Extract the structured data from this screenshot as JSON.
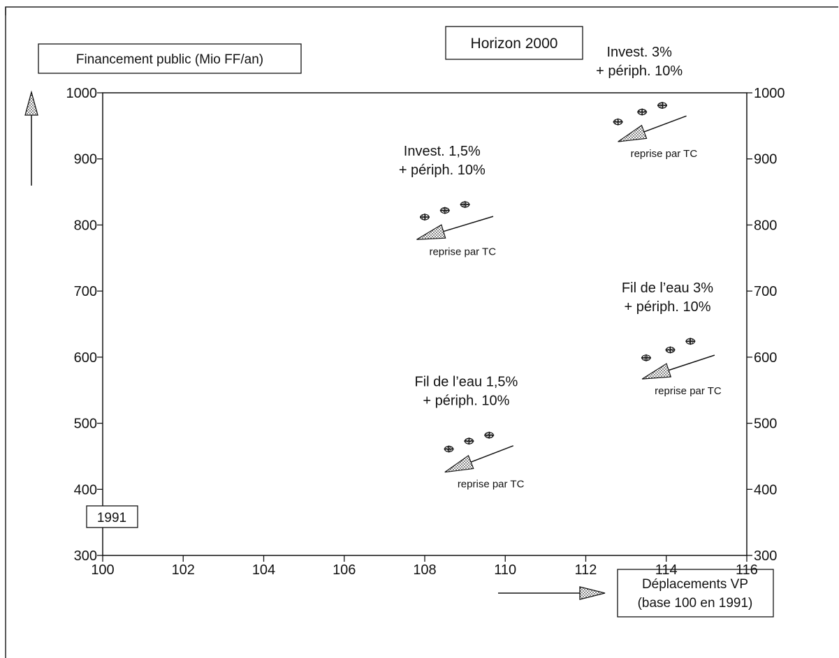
{
  "chart_data": {
    "type": "scatter",
    "title": "Horizon 2000",
    "ylabel": "Financement public (Mio FF/an)",
    "xlabel_line1": "Déplacements VP",
    "xlabel_line2": "(base 100 en 1991)",
    "start_label": "1991",
    "xlim": [
      100,
      116
    ],
    "ylim": [
      300,
      1000
    ],
    "x_ticks": [
      100,
      102,
      104,
      106,
      108,
      110,
      112,
      114,
      116
    ],
    "y_ticks": [
      300,
      400,
      500,
      600,
      700,
      800,
      900,
      1000
    ],
    "arrow_label": "reprise par TC",
    "groups": [
      {
        "label_line1": "Invest. 1,5%",
        "label_line2": "+ périph. 10%",
        "points": [
          [
            108.0,
            812
          ],
          [
            108.5,
            822
          ],
          [
            109.0,
            831
          ]
        ],
        "arrow_from": [
          109.7,
          813
        ],
        "arrow_to": [
          107.8,
          778
        ]
      },
      {
        "label_line1": "Invest. 3%",
        "label_line2": "+ périph. 10%",
        "points": [
          [
            112.8,
            956
          ],
          [
            113.4,
            971
          ],
          [
            113.9,
            981
          ]
        ],
        "arrow_from": [
          114.5,
          965
        ],
        "arrow_to": [
          112.8,
          926
        ]
      },
      {
        "label_line1": "Fil de l’eau 1,5%",
        "label_line2": "+ périph. 10%",
        "points": [
          [
            108.6,
            461
          ],
          [
            109.1,
            473
          ],
          [
            109.6,
            482
          ]
        ],
        "arrow_from": [
          110.2,
          466
        ],
        "arrow_to": [
          108.5,
          426
        ]
      },
      {
        "label_line1": "Fil de l’eau 3%",
        "label_line2": "+ périph. 10%",
        "points": [
          [
            113.5,
            599
          ],
          [
            114.1,
            611
          ],
          [
            114.6,
            624
          ]
        ],
        "arrow_from": [
          115.2,
          603
        ],
        "arrow_to": [
          113.4,
          567
        ]
      }
    ]
  }
}
